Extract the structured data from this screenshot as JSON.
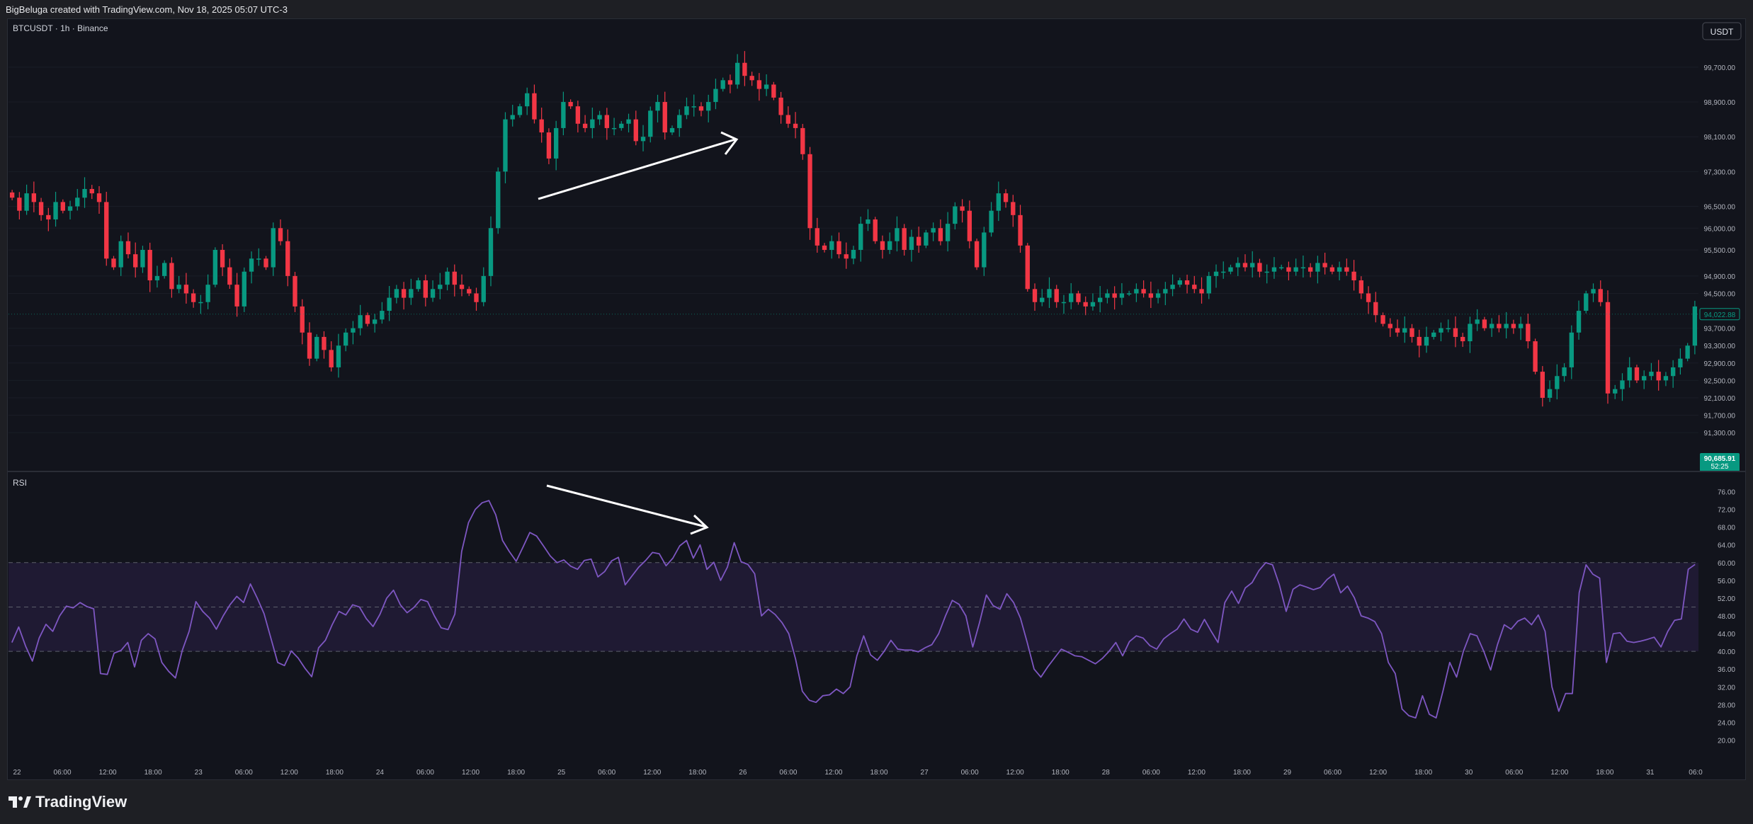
{
  "header": {
    "credit": "BigBeluga created with TradingView.com, Nov 18, 2025 05:07 UTC-3"
  },
  "footer": {
    "brand": "TradingView"
  },
  "colors": {
    "up": "#089981",
    "down": "#f23645",
    "rsi": "#7e57c2",
    "band": "#1f1a33",
    "annotation": "#ffffff",
    "price_label_bg": "#089981"
  },
  "chart_data": [
    {
      "type": "candlestick",
      "title": "BTCUSDT · 1h · Binance",
      "currency_button": "USDT",
      "y_ticks": [
        "99,700.00",
        "98,900.00",
        "98,100.00",
        "97,300.00",
        "96,500.00",
        "96,000.00",
        "95,500.00",
        "94,900.00",
        "94,500.00",
        "93,700.00",
        "93,300.00",
        "92,900.00",
        "92,500.00",
        "92,100.00",
        "91,700.00",
        "91,300.00"
      ],
      "last_price_marker": "94,022.88",
      "current_price_label": "90,685.91",
      "countdown": "52:25",
      "x_ticks": [
        "22",
        "06:00",
        "12:00",
        "18:00",
        "23",
        "06:00",
        "12:00",
        "18:00",
        "24",
        "06:00",
        "12:00",
        "18:00",
        "25",
        "06:00",
        "12:00",
        "18:00",
        "26",
        "06:00",
        "12:00",
        "18:00",
        "27",
        "06:00",
        "12:00",
        "18:00",
        "28",
        "06:00",
        "12:00",
        "18:00",
        "29",
        "06:00",
        "12:00",
        "18:00",
        "30",
        "06:00",
        "12:00",
        "18:00",
        "31",
        "06:0"
      ],
      "annotations": [
        {
          "type": "arrow",
          "direction": "up-right",
          "meaning": "rising price highs"
        }
      ],
      "closes": [
        96700,
        96400,
        96800,
        96600,
        96300,
        96200,
        96600,
        96400,
        96500,
        96700,
        96900,
        96800,
        96600,
        95300,
        95100,
        95700,
        95400,
        95100,
        95500,
        94800,
        94900,
        95200,
        94600,
        94700,
        94500,
        94300,
        94300,
        94700,
        95500,
        95100,
        94700,
        94200,
        95000,
        95300,
        95300,
        95100,
        96000,
        95700,
        94900,
        94200,
        93600,
        93000,
        93500,
        93200,
        92800,
        93300,
        93600,
        93700,
        94000,
        93800,
        93900,
        94100,
        94400,
        94600,
        94400,
        94600,
        94800,
        94400,
        94600,
        94700,
        95000,
        94700,
        94600,
        94500,
        94300,
        94900,
        96000,
        97300,
        98500,
        98600,
        98800,
        99100,
        98500,
        98200,
        97600,
        98300,
        98900,
        98800,
        98400,
        98300,
        98500,
        98600,
        98300,
        98300,
        98400,
        98500,
        98000,
        98100,
        98700,
        98900,
        98200,
        98300,
        98600,
        98800,
        98800,
        98700,
        98900,
        99200,
        99400,
        99300,
        99800,
        99500,
        99400,
        99200,
        99300,
        99000,
        98600,
        98400,
        98300,
        97700,
        96000,
        95600,
        95500,
        95700,
        95400,
        95300,
        95500,
        96100,
        96200,
        95700,
        95500,
        95700,
        96000,
        95500,
        95800,
        95600,
        95900,
        96000,
        95700,
        96100,
        96500,
        96400,
        95700,
        95100,
        95900,
        96400,
        96800,
        96600,
        96300,
        95600,
        94600,
        94300,
        94400,
        94600,
        94300,
        94300,
        94500,
        94300,
        94200,
        94300,
        94400,
        94500,
        94400,
        94500,
        94500,
        94600,
        94500,
        94400,
        94500,
        94600,
        94700,
        94800,
        94700,
        94600,
        94500,
        94900,
        95000,
        95000,
        95100,
        95200,
        95100,
        95200,
        95000,
        95000,
        95100,
        95100,
        95000,
        95100,
        95100,
        95000,
        95200,
        95100,
        95000,
        95100,
        95000,
        94800,
        94500,
        94300,
        94000,
        93800,
        93700,
        93600,
        93700,
        93500,
        93300,
        93500,
        93600,
        93700,
        93700,
        93500,
        93400,
        93800,
        93900,
        93700,
        93800,
        93700,
        93800,
        93700,
        93800,
        93400,
        92700,
        92100,
        92300,
        92600,
        92800,
        93600,
        94100,
        94500,
        94600,
        94300,
        92200,
        92300,
        92500,
        92800,
        92500,
        92600,
        92700,
        92500,
        92600,
        92800,
        93000,
        93300,
        94200
      ],
      "rsi": {
        "label": "RSI",
        "y_ticks": [
          "76.00",
          "72.00",
          "68.00",
          "64.00",
          "60.00",
          "56.00",
          "52.00",
          "48.00",
          "44.00",
          "40.00",
          "36.00",
          "32.00",
          "28.00",
          "24.00",
          "20.00"
        ],
        "ylim": [
          18,
          78
        ],
        "band": [
          40,
          60
        ],
        "midline": 50,
        "annotations": [
          {
            "type": "arrow",
            "direction": "down-right",
            "meaning": "falling RSI highs"
          }
        ],
        "values": [
          42.0,
          45.5,
          41.2,
          37.8,
          43.0,
          46.1,
          44.5,
          48.0,
          50.2,
          49.8,
          51.0,
          50.1,
          49.6,
          35.0,
          34.8,
          39.6,
          40.2,
          42.0,
          36.5,
          42.5,
          44.0,
          42.8,
          37.5,
          35.5,
          34.0,
          40.2,
          44.5,
          51.2,
          49.0,
          47.5,
          45.0,
          48.0,
          50.5,
          52.4,
          51.0,
          55.2,
          52.0,
          48.5,
          43.0,
          37.5,
          36.8,
          40.1,
          38.5,
          36.2,
          34.3,
          40.8,
          42.5,
          46.0,
          49.0,
          48.2,
          50.5,
          50.0,
          47.4,
          45.6,
          48.3,
          52.0,
          53.8,
          50.5,
          48.7,
          49.9,
          51.7,
          51.2,
          48.0,
          45.3,
          44.9,
          48.4,
          62.5,
          69.0,
          72.0,
          73.5,
          74.0,
          70.8,
          65.0,
          62.5,
          60.3,
          63.5,
          66.8,
          66.0,
          63.8,
          61.5,
          60.0,
          60.6,
          59.2,
          58.5,
          60.5,
          60.8,
          56.8,
          58.0,
          60.4,
          61.2,
          55.0,
          57.0,
          59.0,
          60.5,
          62.3,
          62.0,
          59.3,
          61.0,
          63.8,
          65.0,
          61.0,
          64.0,
          58.5,
          60.1,
          56.0,
          59.0,
          64.5,
          60.2,
          59.6,
          57.5,
          48.0,
          49.5,
          48.3,
          46.5,
          44.0,
          38.3,
          31.0,
          29.0,
          28.5,
          30.0,
          30.2,
          31.5,
          30.5,
          32.0,
          39.0,
          43.5,
          39.2,
          38.0,
          40.0,
          42.5,
          40.5,
          40.3,
          40.3,
          39.9,
          40.8,
          41.5,
          44.0,
          48.0,
          51.5,
          50.6,
          48.0,
          41.0,
          46.5,
          52.7,
          50.3,
          49.5,
          53.0,
          51.0,
          47.5,
          42.0,
          36.0,
          34.2,
          36.5,
          38.5,
          40.5,
          39.8,
          39.0,
          38.8,
          38.0,
          37.2,
          38.4,
          40.0,
          42.0,
          39.0,
          42.2,
          43.5,
          43.0,
          41.3,
          40.5,
          42.8,
          44.0,
          45.0,
          47.3,
          45.0,
          44.3,
          47.2,
          44.5,
          42.0,
          51.0,
          53.6,
          50.8,
          54.3,
          55.5,
          58.2,
          60.0,
          59.5,
          55.0,
          49.0,
          54.0,
          55.0,
          54.5,
          53.9,
          54.4,
          56.2,
          57.4,
          53.2,
          54.7,
          52.1,
          48.0,
          47.5,
          46.7,
          44.0,
          37.5,
          35.0,
          27.0,
          25.5,
          25.0,
          30.0,
          25.8,
          25.0,
          31.0,
          37.5,
          34.2,
          40.0,
          44.0,
          43.5,
          40.0,
          35.8,
          41.5,
          46.0,
          45.0,
          46.8,
          47.5,
          46.0,
          48.2,
          44.5,
          32.0,
          26.5,
          30.5,
          30.5,
          53.2,
          59.5,
          57.4,
          56.5,
          37.5,
          44.0,
          44.2,
          42.3,
          42.0,
          42.3,
          42.7,
          43.2,
          41.0,
          44.5,
          47.0,
          47.3,
          58.5,
          59.6
        ]
      }
    }
  ]
}
